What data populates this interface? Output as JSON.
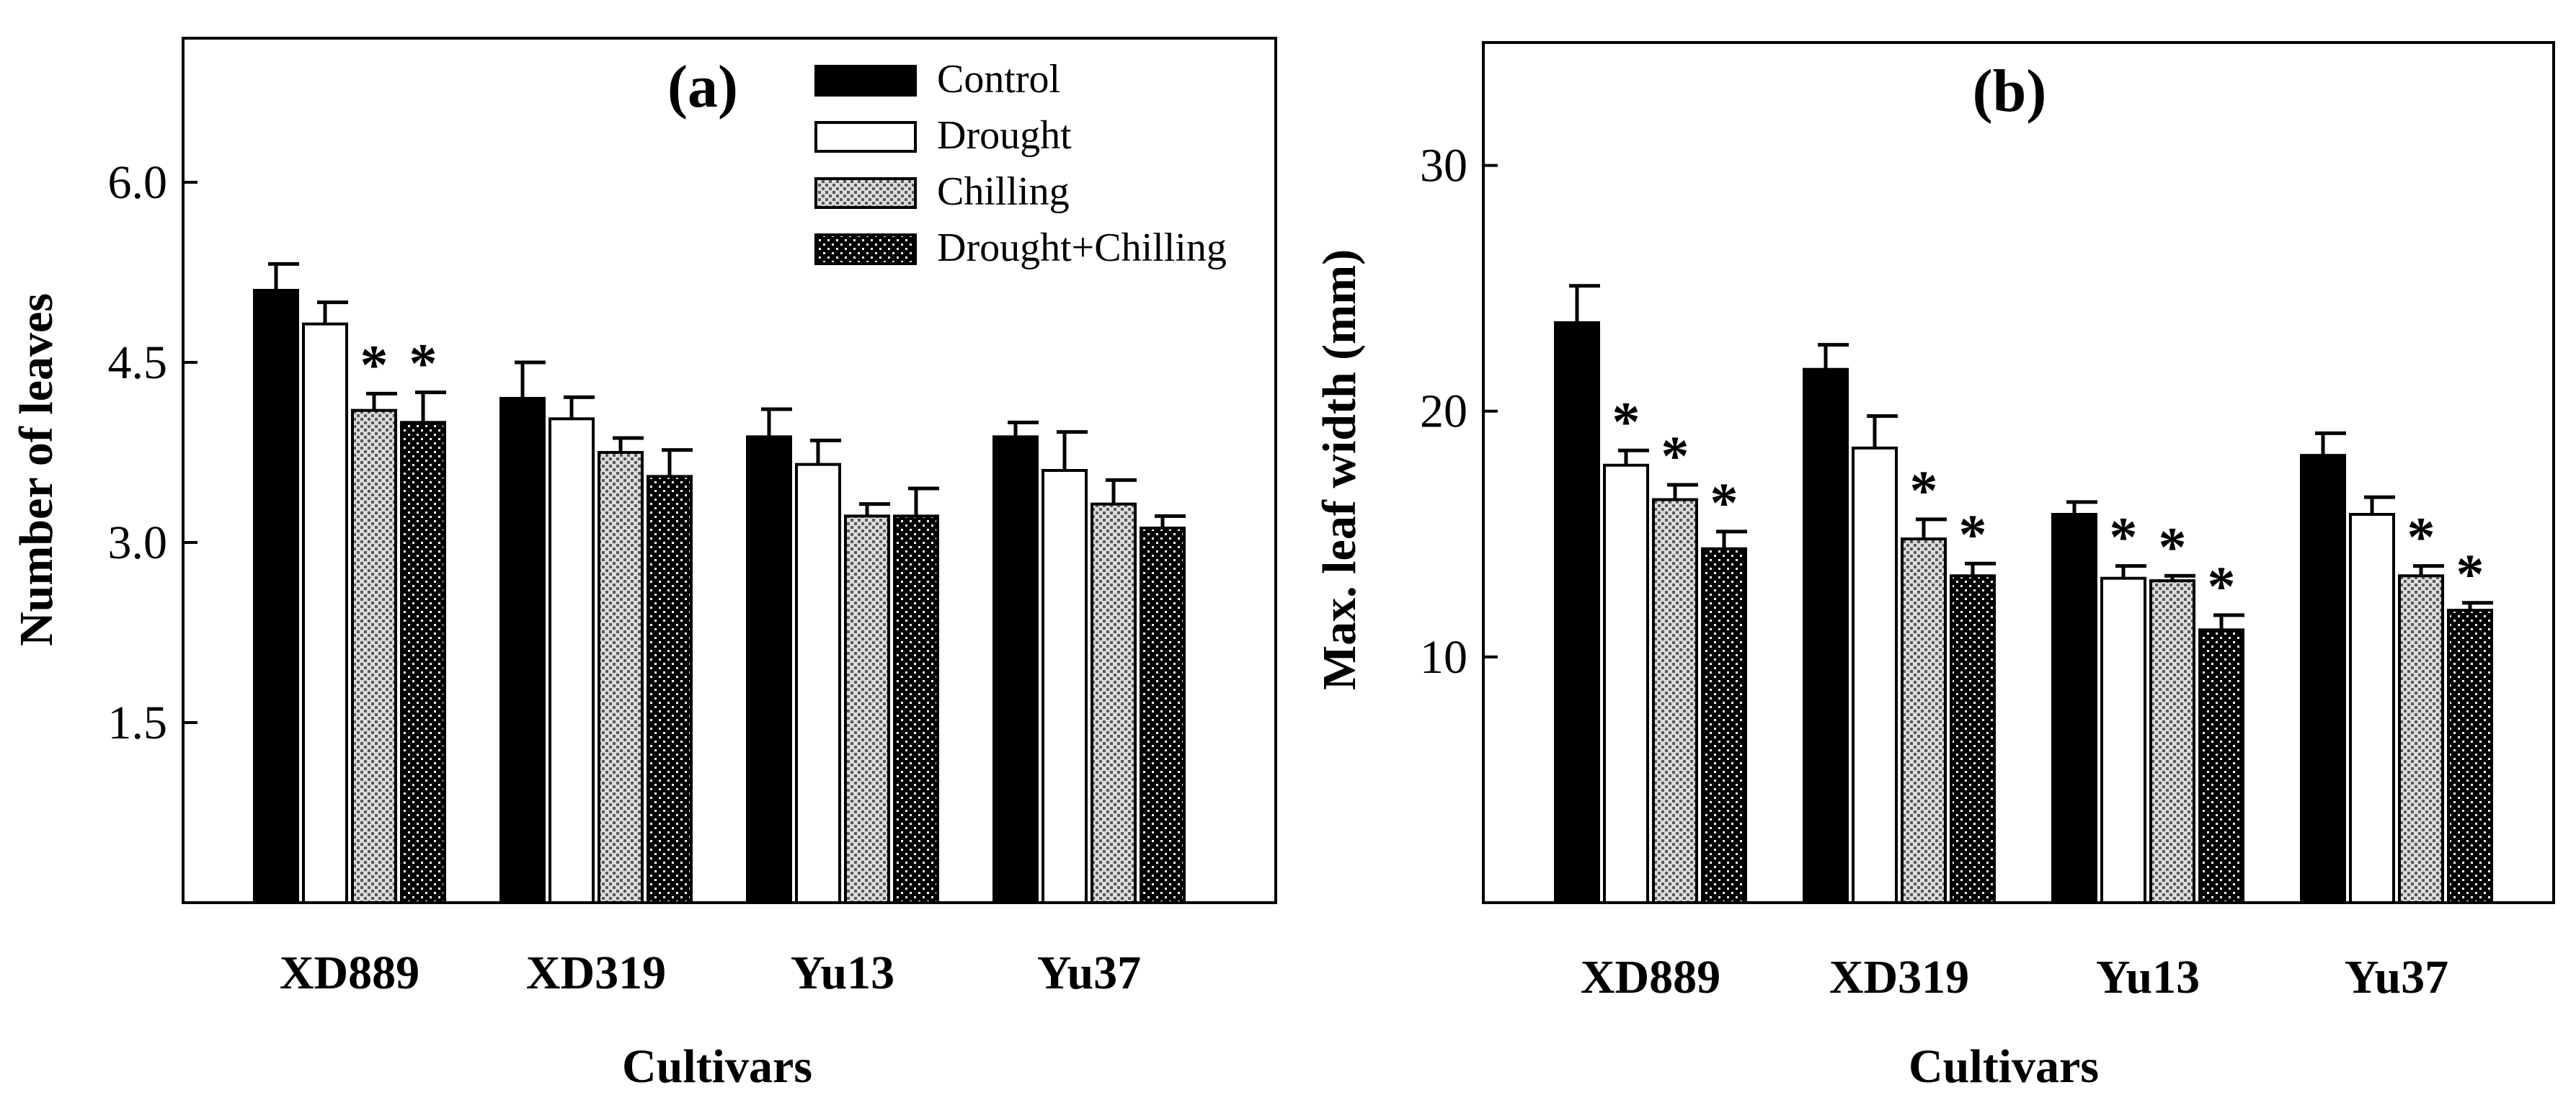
{
  "legend": {
    "entries": [
      {
        "label": "Control",
        "pattern": "solid-black"
      },
      {
        "label": "Drought",
        "pattern": "white"
      },
      {
        "label": "Chilling",
        "pattern": "light-dots"
      },
      {
        "label": "Drought+Chilling",
        "pattern": "dark-dots"
      }
    ]
  },
  "colors": {
    "bar_dark": "#000000",
    "bar_light": "#ffffff",
    "axis": "#000000"
  },
  "chart_data": [
    {
      "type": "bar",
      "panel_label": "(a)",
      "title": "",
      "xlabel": "Cultivars",
      "ylabel": "Number of leaves",
      "ylim": [
        0,
        7.2
      ],
      "yticks": [
        1.5,
        3.0,
        4.5,
        6.0
      ],
      "ytick_labels": [
        "1.5",
        "3.0",
        "4.5",
        "6.0"
      ],
      "categories": [
        "XD889",
        "XD319",
        "Yu13",
        "Yu37"
      ],
      "legend_position": "top-right",
      "series": [
        {
          "name": "Control",
          "values": [
            5.1,
            4.2,
            3.88,
            3.88
          ],
          "errors": [
            0.22,
            0.3,
            0.23,
            0.12
          ],
          "significant": [
            false,
            false,
            false,
            false
          ]
        },
        {
          "name": "Drought",
          "values": [
            4.82,
            4.03,
            3.65,
            3.6
          ],
          "errors": [
            0.18,
            0.18,
            0.2,
            0.32
          ],
          "significant": [
            false,
            false,
            false,
            false
          ]
        },
        {
          "name": "Chilling",
          "values": [
            4.1,
            3.75,
            3.22,
            3.32
          ],
          "errors": [
            0.14,
            0.12,
            0.1,
            0.2
          ],
          "significant": [
            true,
            false,
            false,
            false
          ]
        },
        {
          "name": "Drought+Chilling",
          "values": [
            4.0,
            3.55,
            3.22,
            3.12
          ],
          "errors": [
            0.25,
            0.22,
            0.23,
            0.1
          ],
          "significant": [
            true,
            false,
            false,
            false
          ]
        }
      ],
      "significance_symbol": "*"
    },
    {
      "type": "bar",
      "panel_label": "(b)",
      "title": "",
      "xlabel": "Cultivars",
      "ylabel": "Max. leaf width (mm)",
      "ylim": [
        0,
        35
      ],
      "yticks": [
        10,
        20,
        30
      ],
      "ytick_labels": [
        "10",
        "20",
        "30"
      ],
      "categories": [
        "XD889",
        "XD319",
        "Yu13",
        "Yu37"
      ],
      "series": [
        {
          "name": "Control",
          "values": [
            23.6,
            21.7,
            15.8,
            18.2
          ],
          "errors": [
            1.5,
            1.0,
            0.5,
            0.9
          ],
          "significant": [
            false,
            false,
            false,
            false
          ]
        },
        {
          "name": "Drought",
          "values": [
            17.8,
            18.5,
            13.2,
            15.8
          ],
          "errors": [
            0.6,
            1.3,
            0.5,
            0.7
          ],
          "significant": [
            true,
            false,
            true,
            false
          ]
        },
        {
          "name": "Chilling",
          "values": [
            16.4,
            14.8,
            13.1,
            13.3
          ],
          "errors": [
            0.6,
            0.8,
            0.2,
            0.4
          ],
          "significant": [
            true,
            true,
            true,
            true
          ]
        },
        {
          "name": "Drought+Chilling",
          "values": [
            14.4,
            13.3,
            11.1,
            11.9
          ],
          "errors": [
            0.7,
            0.5,
            0.6,
            0.3
          ],
          "significant": [
            true,
            true,
            true,
            true
          ]
        }
      ],
      "significance_symbol": "*"
    }
  ]
}
